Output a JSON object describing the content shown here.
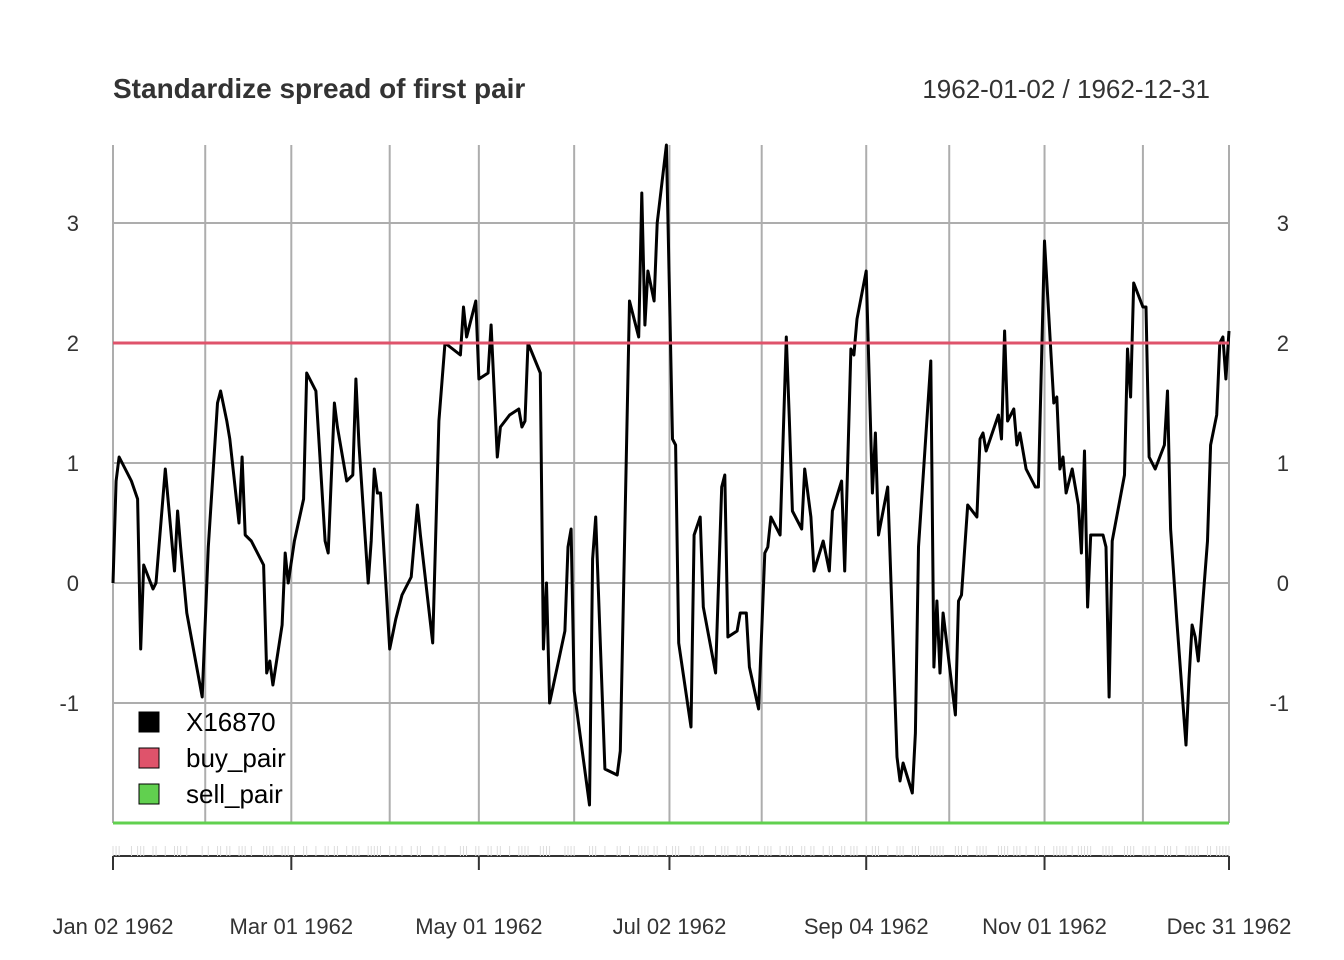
{
  "chart_data": {
    "type": "line",
    "title": "Standardize spread of first pair",
    "date_range_label": "1962-01-02 / 1962-12-31",
    "x_start": "1962-01-02",
    "x_end": "1962-12-31",
    "ylim": [
      -2.0,
      3.65
    ],
    "y_ticks": [
      -1,
      0,
      1,
      2,
      3
    ],
    "x_ticks": [
      {
        "date": "1962-01-02",
        "label": "Jan 02 1962"
      },
      {
        "date": "1962-03-01",
        "label": "Mar 01 1962"
      },
      {
        "date": "1962-05-01",
        "label": "May 01 1962"
      },
      {
        "date": "1962-07-02",
        "label": "Jul 02 1962"
      },
      {
        "date": "1962-09-04",
        "label": "Sep 04 1962"
      },
      {
        "date": "1962-11-01",
        "label": "Nov 01 1962"
      },
      {
        "date": "1962-12-31",
        "label": "Dec 31 1962"
      }
    ],
    "grid_dates": [
      "1962-01-02",
      "1962-02-01",
      "1962-03-01",
      "1962-04-02",
      "1962-05-01",
      "1962-06-01",
      "1962-07-02",
      "1962-08-01",
      "1962-09-04",
      "1962-10-01",
      "1962-11-01",
      "1962-12-03",
      "1962-12-31"
    ],
    "legend_position": "bottom-left",
    "series": [
      {
        "name": "X16870",
        "color": "#000000",
        "points": [
          [
            "1962-01-02",
            0.0
          ],
          [
            "1962-01-03",
            0.85
          ],
          [
            "1962-01-04",
            1.05
          ],
          [
            "1962-01-08",
            0.85
          ],
          [
            "1962-01-10",
            0.7
          ],
          [
            "1962-01-11",
            -0.55
          ],
          [
            "1962-01-12",
            0.15
          ],
          [
            "1962-01-15",
            -0.05
          ],
          [
            "1962-01-16",
            0.0
          ],
          [
            "1962-01-19",
            0.95
          ],
          [
            "1962-01-22",
            0.1
          ],
          [
            "1962-01-23",
            0.6
          ],
          [
            "1962-01-24",
            0.3
          ],
          [
            "1962-01-26",
            -0.25
          ],
          [
            "1962-01-31",
            -0.95
          ],
          [
            "1962-02-02",
            0.3
          ],
          [
            "1962-02-05",
            1.5
          ],
          [
            "1962-02-06",
            1.6
          ],
          [
            "1962-02-08",
            1.35
          ],
          [
            "1962-02-09",
            1.2
          ],
          [
            "1962-02-12",
            0.5
          ],
          [
            "1962-02-13",
            1.05
          ],
          [
            "1962-02-14",
            0.4
          ],
          [
            "1962-02-16",
            0.35
          ],
          [
            "1962-02-20",
            0.15
          ],
          [
            "1962-02-21",
            -0.75
          ],
          [
            "1962-02-22",
            -0.65
          ],
          [
            "1962-02-23",
            -0.85
          ],
          [
            "1962-02-26",
            -0.35
          ],
          [
            "1962-02-27",
            0.25
          ],
          [
            "1962-02-28",
            0.0
          ],
          [
            "1962-03-02",
            0.35
          ],
          [
            "1962-03-05",
            0.7
          ],
          [
            "1962-03-06",
            1.75
          ],
          [
            "1962-03-09",
            1.6
          ],
          [
            "1962-03-12",
            0.35
          ],
          [
            "1962-03-13",
            0.25
          ],
          [
            "1962-03-15",
            1.5
          ],
          [
            "1962-03-16",
            1.3
          ],
          [
            "1962-03-19",
            0.85
          ],
          [
            "1962-03-21",
            0.9
          ],
          [
            "1962-03-22",
            1.7
          ],
          [
            "1962-03-23",
            1.15
          ],
          [
            "1962-03-26",
            0.0
          ],
          [
            "1962-03-27",
            0.35
          ],
          [
            "1962-03-28",
            0.95
          ],
          [
            "1962-03-29",
            0.75
          ],
          [
            "1962-03-30",
            0.75
          ],
          [
            "1962-04-02",
            -0.55
          ],
          [
            "1962-04-04",
            -0.3
          ],
          [
            "1962-04-06",
            -0.1
          ],
          [
            "1962-04-09",
            0.05
          ],
          [
            "1962-04-11",
            0.65
          ],
          [
            "1962-04-12",
            0.4
          ],
          [
            "1962-04-16",
            -0.5
          ],
          [
            "1962-04-18",
            1.35
          ],
          [
            "1962-04-20",
            2.0
          ],
          [
            "1962-04-25",
            1.9
          ],
          [
            "1962-04-26",
            2.3
          ],
          [
            "1962-04-27",
            2.05
          ],
          [
            "1962-04-30",
            2.35
          ],
          [
            "1962-05-01",
            1.7
          ],
          [
            "1962-05-04",
            1.75
          ],
          [
            "1962-05-05",
            2.15
          ],
          [
            "1962-05-07",
            1.05
          ],
          [
            "1962-05-08",
            1.3
          ],
          [
            "1962-05-11",
            1.4
          ],
          [
            "1962-05-14",
            1.45
          ],
          [
            "1962-05-15",
            1.3
          ],
          [
            "1962-05-16",
            1.35
          ],
          [
            "1962-05-17",
            2.0
          ],
          [
            "1962-05-21",
            1.75
          ],
          [
            "1962-05-22",
            -0.55
          ],
          [
            "1962-05-23",
            0.0
          ],
          [
            "1962-05-24",
            -1.0
          ],
          [
            "1962-05-29",
            -0.4
          ],
          [
            "1962-05-30",
            0.3
          ],
          [
            "1962-05-31",
            0.45
          ],
          [
            "1962-06-01",
            -0.9
          ],
          [
            "1962-06-06",
            -1.85
          ],
          [
            "1962-06-07",
            0.2
          ],
          [
            "1962-06-08",
            0.55
          ],
          [
            "1962-06-11",
            -1.55
          ],
          [
            "1962-06-15",
            -1.6
          ],
          [
            "1962-06-16",
            -1.4
          ],
          [
            "1962-06-19",
            2.35
          ],
          [
            "1962-06-22",
            2.05
          ],
          [
            "1962-06-23",
            3.25
          ],
          [
            "1962-06-24",
            2.15
          ],
          [
            "1962-06-25",
            2.6
          ],
          [
            "1962-06-27",
            2.35
          ],
          [
            "1962-06-28",
            3.0
          ],
          [
            "1962-07-01",
            3.65
          ],
          [
            "1962-07-03",
            1.2
          ],
          [
            "1962-07-04",
            1.15
          ],
          [
            "1962-07-05",
            -0.5
          ],
          [
            "1962-07-09",
            -1.2
          ],
          [
            "1962-07-10",
            0.4
          ],
          [
            "1962-07-12",
            0.55
          ],
          [
            "1962-07-13",
            -0.2
          ],
          [
            "1962-07-17",
            -0.75
          ],
          [
            "1962-07-19",
            0.8
          ],
          [
            "1962-07-20",
            0.9
          ],
          [
            "1962-07-21",
            -0.45
          ],
          [
            "1962-07-24",
            -0.4
          ],
          [
            "1962-07-25",
            -0.25
          ],
          [
            "1962-07-27",
            -0.25
          ],
          [
            "1962-07-28",
            -0.7
          ],
          [
            "1962-07-31",
            -1.05
          ],
          [
            "1962-08-02",
            0.25
          ],
          [
            "1962-08-03",
            0.3
          ],
          [
            "1962-08-04",
            0.55
          ],
          [
            "1962-08-07",
            0.4
          ],
          [
            "1962-08-09",
            2.05
          ],
          [
            "1962-08-10",
            1.35
          ],
          [
            "1962-08-11",
            0.6
          ],
          [
            "1962-08-14",
            0.45
          ],
          [
            "1962-08-15",
            0.95
          ],
          [
            "1962-08-17",
            0.55
          ],
          [
            "1962-08-18",
            0.1
          ],
          [
            "1962-08-21",
            0.35
          ],
          [
            "1962-08-23",
            0.1
          ],
          [
            "1962-08-24",
            0.6
          ],
          [
            "1962-08-27",
            0.85
          ],
          [
            "1962-08-28",
            0.1
          ],
          [
            "1962-08-30",
            1.95
          ],
          [
            "1962-08-31",
            1.9
          ],
          [
            "1962-09-01",
            2.2
          ],
          [
            "1962-09-04",
            2.6
          ],
          [
            "1962-09-06",
            0.75
          ],
          [
            "1962-09-07",
            1.25
          ],
          [
            "1962-09-08",
            0.4
          ],
          [
            "1962-09-11",
            0.8
          ],
          [
            "1962-09-14",
            -1.45
          ],
          [
            "1962-09-15",
            -1.65
          ],
          [
            "1962-09-16",
            -1.5
          ],
          [
            "1962-09-19",
            -1.75
          ],
          [
            "1962-09-20",
            -1.25
          ],
          [
            "1962-09-21",
            0.3
          ],
          [
            "1962-09-25",
            1.85
          ],
          [
            "1962-09-26",
            -0.7
          ],
          [
            "1962-09-27",
            -0.15
          ],
          [
            "1962-09-28",
            -0.75
          ],
          [
            "1962-09-29",
            -0.25
          ],
          [
            "1962-10-03",
            -1.1
          ],
          [
            "1962-10-04",
            -0.15
          ],
          [
            "1962-10-05",
            -0.1
          ],
          [
            "1962-10-07",
            0.65
          ],
          [
            "1962-10-10",
            0.55
          ],
          [
            "1962-10-11",
            1.2
          ],
          [
            "1962-10-12",
            1.25
          ],
          [
            "1962-10-13",
            1.1
          ],
          [
            "1962-10-17",
            1.4
          ],
          [
            "1962-10-18",
            1.2
          ],
          [
            "1962-10-19",
            2.1
          ],
          [
            "1962-10-20",
            1.35
          ],
          [
            "1962-10-22",
            1.45
          ],
          [
            "1962-10-23",
            1.15
          ],
          [
            "1962-10-24",
            1.25
          ],
          [
            "1962-10-26",
            0.95
          ],
          [
            "1962-10-29",
            0.8
          ],
          [
            "1962-10-30",
            0.8
          ],
          [
            "1962-11-01",
            2.85
          ],
          [
            "1962-11-04",
            1.5
          ],
          [
            "1962-11-05",
            1.55
          ],
          [
            "1962-11-06",
            0.95
          ],
          [
            "1962-11-07",
            1.05
          ],
          [
            "1962-11-08",
            0.75
          ],
          [
            "1962-11-10",
            0.95
          ],
          [
            "1962-11-12",
            0.65
          ],
          [
            "1962-11-13",
            0.25
          ],
          [
            "1962-11-14",
            1.1
          ],
          [
            "1962-11-15",
            -0.2
          ],
          [
            "1962-11-16",
            0.4
          ],
          [
            "1962-11-20",
            0.4
          ],
          [
            "1962-11-21",
            0.3
          ],
          [
            "1962-11-22",
            -0.95
          ],
          [
            "1962-11-23",
            0.35
          ],
          [
            "1962-11-27",
            0.9
          ],
          [
            "1962-11-28",
            1.95
          ],
          [
            "1962-11-29",
            1.55
          ],
          [
            "1962-11-30",
            2.5
          ],
          [
            "1962-12-03",
            2.3
          ],
          [
            "1962-12-04",
            2.3
          ],
          [
            "1962-12-05",
            1.05
          ],
          [
            "1962-12-07",
            0.95
          ],
          [
            "1962-12-10",
            1.15
          ],
          [
            "1962-12-11",
            1.6
          ],
          [
            "1962-12-12",
            0.45
          ],
          [
            "1962-12-14",
            -0.3
          ],
          [
            "1962-12-17",
            -1.35
          ],
          [
            "1962-12-18",
            -0.8
          ],
          [
            "1962-12-19",
            -0.35
          ],
          [
            "1962-12-20",
            -0.45
          ],
          [
            "1962-12-21",
            -0.65
          ],
          [
            "1962-12-24",
            0.35
          ],
          [
            "1962-12-25",
            1.15
          ],
          [
            "1962-12-27",
            1.4
          ],
          [
            "1962-12-28",
            2.0
          ],
          [
            "1962-12-29",
            2.05
          ],
          [
            "1962-12-30",
            1.7
          ],
          [
            "1962-12-31",
            2.1
          ]
        ]
      },
      {
        "name": "buy_pair",
        "color": "#DF536B",
        "constant": 2.0
      },
      {
        "name": "sell_pair",
        "color": "#61D04F",
        "constant": -2.0
      }
    ]
  }
}
